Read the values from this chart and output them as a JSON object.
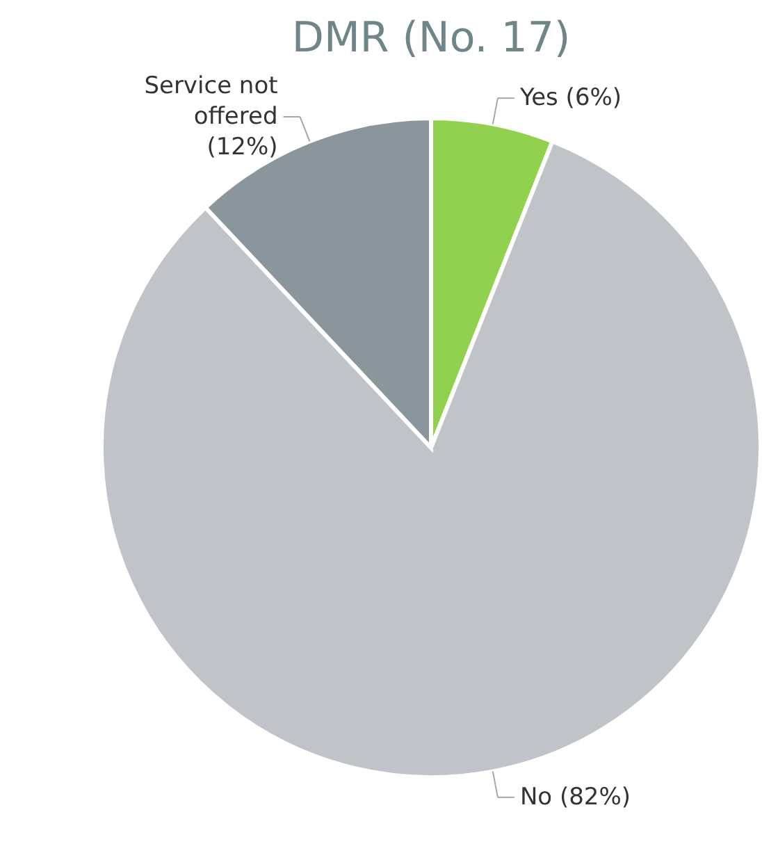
{
  "chart_data": {
    "type": "pie",
    "title": "DMR (No. 17)",
    "categories": [
      "Yes (6%)",
      "No (82%)",
      "Service not offered (12%)"
    ],
    "values": [
      6,
      82,
      12
    ],
    "colors": [
      "#92d050",
      "#c0c4c8",
      "#8a969c"
    ]
  }
}
